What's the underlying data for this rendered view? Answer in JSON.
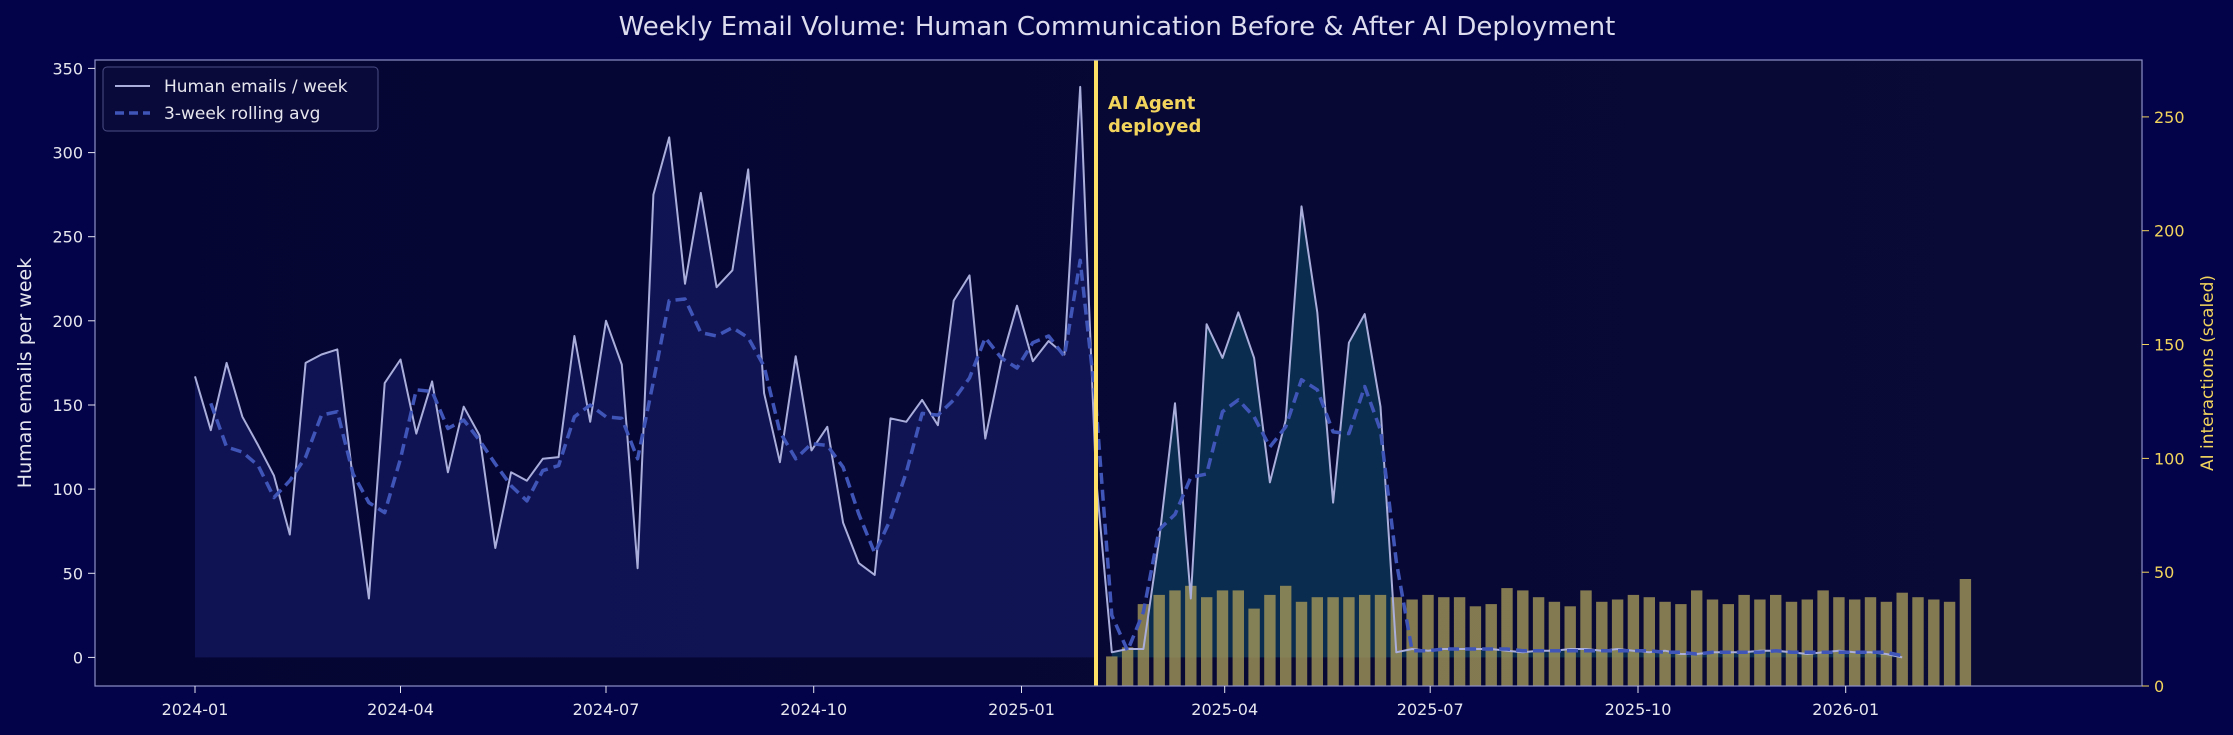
{
  "chart_data": {
    "type": "line",
    "title": "Weekly Email Volume: Human Communication Before & After AI Deployment",
    "ylabel": "Human emails per week",
    "ylabel_right": "AI interactions (scaled)",
    "xlabel": "",
    "x_start": "2024-01-01",
    "x_step_days": 7,
    "ylim": [
      -17,
      355
    ],
    "ylim_right": [
      0,
      275
    ],
    "yticks": [
      0,
      50,
      100,
      150,
      200,
      250,
      300,
      350
    ],
    "yticks_right": [
      0,
      50,
      100,
      150,
      200,
      250
    ],
    "xticks": [
      {
        "label": "2024-01",
        "date": "2024-01-01"
      },
      {
        "label": "2024-04",
        "date": "2024-04-01"
      },
      {
        "label": "2024-07",
        "date": "2024-07-01"
      },
      {
        "label": "2024-10",
        "date": "2024-10-01"
      },
      {
        "label": "2025-01",
        "date": "2025-01-01"
      },
      {
        "label": "2025-04",
        "date": "2025-04-01"
      },
      {
        "label": "2025-07",
        "date": "2025-07-01"
      },
      {
        "label": "2025-10",
        "date": "2025-10-01"
      },
      {
        "label": "2026-01",
        "date": "2026-01-01"
      }
    ],
    "legend_position": "top-left",
    "grid": false,
    "series": [
      {
        "name": "Human emails / week",
        "type": "line",
        "axis": "left",
        "color": "#a9aedb",
        "values": [
          167,
          135,
          175,
          143,
          126,
          108,
          73,
          175,
          180,
          183,
          105,
          35,
          163,
          177,
          133,
          164,
          110,
          149,
          132,
          65,
          110,
          105,
          118,
          119,
          191,
          140,
          200,
          174,
          53,
          275,
          309,
          222,
          276,
          220,
          230,
          290,
          157,
          116,
          179,
          123,
          137,
          80,
          56,
          49,
          142,
          140,
          153,
          138,
          212,
          227,
          130,
          176,
          209,
          176,
          188,
          180,
          339,
          107,
          3,
          5,
          5,
          70,
          151,
          35,
          198,
          178,
          205,
          178,
          104,
          141,
          268,
          205,
          92,
          187,
          204,
          149,
          3,
          5,
          4,
          5,
          5,
          5,
          5,
          4,
          3,
          4,
          4,
          5,
          5,
          4,
          5,
          4,
          3,
          4,
          2,
          2,
          3,
          3,
          3,
          4,
          4,
          3,
          2,
          3,
          4,
          3,
          3,
          2,
          0
        ]
      },
      {
        "name": "3-week rolling avg",
        "type": "line",
        "axis": "left",
        "color": "#4055b8",
        "dashed": true,
        "values": [
          null,
          151,
          125,
          122,
          114,
          95,
          105,
          119,
          144,
          146,
          109,
          92,
          86,
          118,
          159,
          158,
          136,
          141,
          129,
          115,
          102,
          93,
          111,
          114,
          143,
          150,
          143,
          142,
          118,
          164,
          212,
          213,
          193,
          191,
          196,
          190,
          173,
          134,
          118,
          127,
          126,
          113,
          85,
          62,
          82,
          110,
          145,
          144,
          153,
          166,
          190,
          178,
          172,
          187,
          191,
          179,
          236,
          150,
          25,
          4,
          27,
          76,
          85,
          107,
          109,
          146,
          153,
          143,
          125,
          137,
          165,
          159,
          134,
          133,
          161,
          135,
          57,
          4,
          4,
          5,
          5,
          5,
          5,
          5,
          4,
          4,
          4,
          4,
          4,
          4,
          4,
          4,
          4,
          3,
          3,
          2,
          3,
          3,
          3,
          3,
          4,
          3,
          3,
          3,
          3,
          3,
          3,
          3,
          1
        ]
      },
      {
        "name": "AI interactions (scaled)",
        "type": "bar",
        "axis": "right",
        "color": "#a79a5a",
        "start_date": "2025-02-03",
        "values": [
          0,
          13,
          17,
          36,
          40,
          42,
          44,
          39,
          42,
          42,
          34,
          40,
          44,
          37,
          39,
          39,
          39,
          40,
          40,
          39,
          38,
          40,
          39,
          39,
          35,
          36,
          43,
          42,
          39,
          37,
          35,
          42,
          37,
          38,
          40,
          39,
          37,
          36,
          42,
          38,
          36,
          40,
          38,
          40,
          37,
          38,
          42,
          39,
          38,
          39,
          37,
          41,
          39,
          38,
          37,
          47
        ]
      }
    ],
    "annotations": [
      {
        "date": "2025-02-03",
        "label": "AI Agent deployed",
        "lines": [
          "AI Agent",
          "deployed"
        ],
        "color": "#ffe066"
      }
    ]
  }
}
